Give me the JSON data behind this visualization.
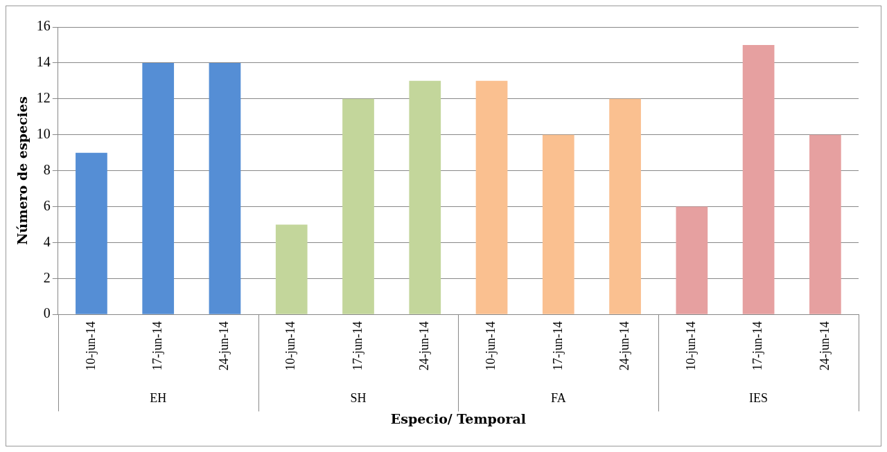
{
  "chart_data": {
    "type": "bar",
    "xlabel": "Especio/ Temporal",
    "ylabel": "Número de especies",
    "categories": [
      "10-jun-14",
      "17-jun-14",
      "24-jun-14",
      "10-jun-14",
      "17-jun-14",
      "24-jun-14",
      "10-jun-14",
      "17-jun-14",
      "24-jun-14",
      "10-jun-14",
      "17-jun-14",
      "24-jun-14"
    ],
    "values": [
      9,
      14,
      14,
      5,
      12,
      13,
      13,
      10,
      12,
      6,
      15,
      10
    ],
    "colors": [
      "#558ed5",
      "#558ed5",
      "#558ed5",
      "#c3d69b",
      "#c3d69b",
      "#c3d69b",
      "#fac090",
      "#fac090",
      "#fac090",
      "#e6a0a0",
      "#e6a0a0",
      "#e6a0a0"
    ],
    "annotations": [
      "EH",
      "SH",
      "FA",
      "IES"
    ],
    "ylim": [
      0,
      16
    ],
    "yticks": [
      0,
      2,
      4,
      6,
      8,
      10,
      12,
      14,
      16
    ],
    "grid": "y",
    "legend": false
  }
}
